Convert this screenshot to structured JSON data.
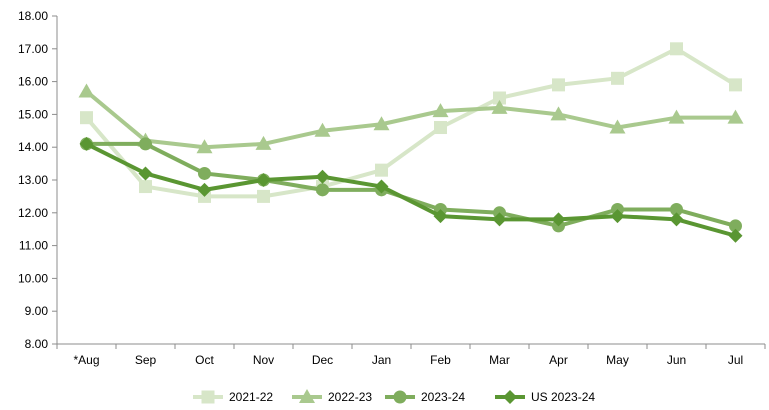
{
  "chart_data": {
    "type": "line",
    "categories": [
      "*Aug",
      "Sep",
      "Oct",
      "Nov",
      "Dec",
      "Jan",
      "Feb",
      "Mar",
      "Apr",
      "May",
      "Jun",
      "Jul"
    ],
    "ylim": [
      8,
      18
    ],
    "yticks": [
      "8.00",
      "9.00",
      "10.00",
      "11.00",
      "12.00",
      "13.00",
      "14.00",
      "15.00",
      "16.00",
      "17.00",
      "18.00"
    ],
    "grid": false,
    "legend_position": "bottom",
    "series": [
      {
        "name": "2021-22",
        "color": "#d7e6c8",
        "marker": "square",
        "values": [
          14.9,
          12.8,
          12.5,
          12.5,
          12.8,
          13.3,
          14.6,
          15.5,
          15.9,
          16.1,
          17.0,
          15.9
        ]
      },
      {
        "name": "2022-23",
        "color": "#a9c98e",
        "marker": "triangle",
        "values": [
          15.7,
          14.2,
          14.0,
          14.1,
          14.5,
          14.7,
          15.1,
          15.2,
          15.0,
          14.6,
          14.9,
          14.9
        ]
      },
      {
        "name": "2023-24",
        "color": "#7fad5d",
        "marker": "circle",
        "values": [
          14.1,
          14.1,
          13.2,
          13.0,
          12.7,
          12.7,
          12.1,
          12.0,
          11.6,
          12.1,
          12.1,
          11.6
        ]
      },
      {
        "name": "US 2023-24",
        "color": "#5a9632",
        "marker": "diamond",
        "values": [
          14.1,
          13.2,
          12.7,
          13.0,
          13.1,
          12.8,
          11.9,
          11.8,
          11.8,
          11.9,
          11.8,
          11.3
        ]
      }
    ]
  }
}
